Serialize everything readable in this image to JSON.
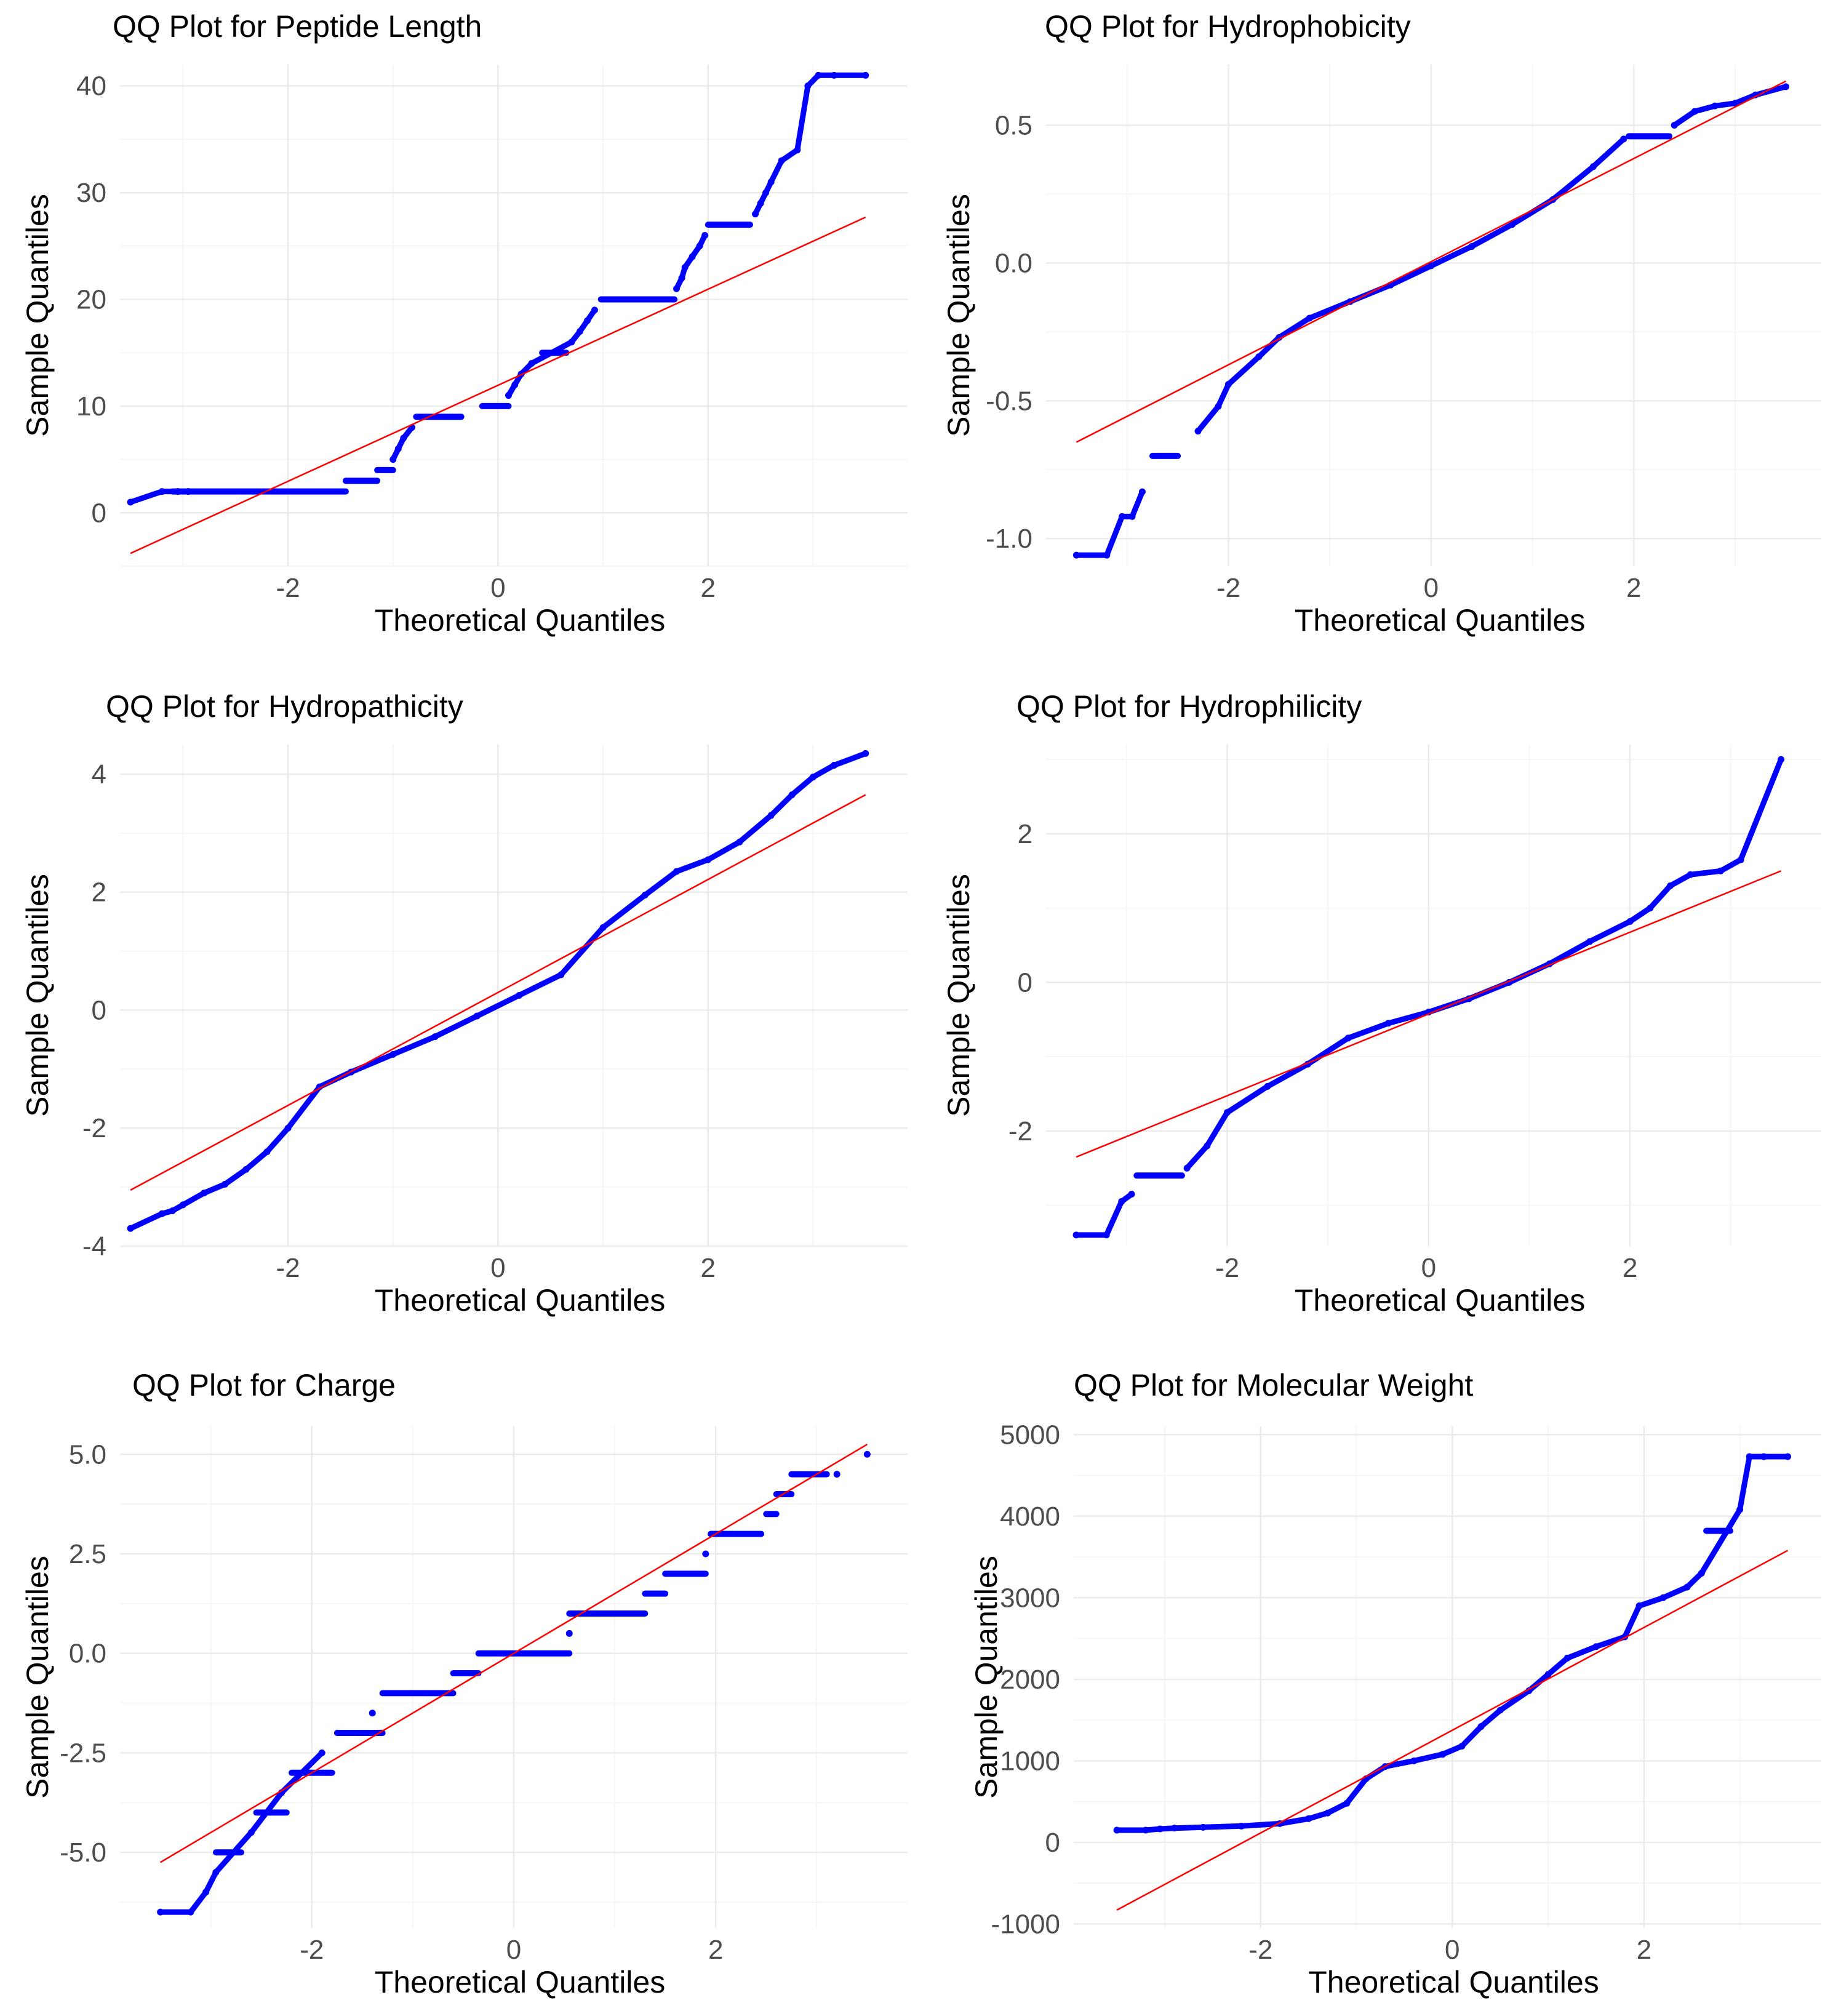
{
  "colors": {
    "points": "#0000FF",
    "line": "#FF0000",
    "grid_major": "#EBEBEB",
    "grid_minor": "#F5F5F5",
    "tick_text": "#4D4D4D",
    "text": "#000000"
  },
  "chart_data": [
    {
      "type": "scatter",
      "title": "QQ Plot for Peptide Length",
      "xlabel": "Theoretical Quantiles",
      "ylabel": "Sample Quantiles",
      "xlim": [
        -3.6,
        3.9
      ],
      "ylim": [
        -5,
        42
      ],
      "xticks": [
        -2,
        0,
        2
      ],
      "xtick_labels": [
        "-2",
        "0",
        "2"
      ],
      "yticks": [
        0,
        10,
        20,
        30,
        40
      ],
      "ytick_labels": [
        "0",
        "10",
        "20",
        "30",
        "40"
      ],
      "reference_line": {
        "x": [
          -3.5,
          3.5
        ],
        "y": [
          -3.8,
          27.7
        ]
      },
      "segments": [
        {
          "x": [
            -3.1,
            -1.45
          ],
          "y": 2
        },
        {
          "x": -1.45,
          "y": 3
        },
        {
          "x": [
            -1.45,
            -1.15
          ],
          "y": 3
        },
        {
          "x": [
            -1.15,
            -1.0
          ],
          "y": 4
        },
        {
          "x": [
            -0.78,
            -0.35
          ],
          "y": 9
        },
        {
          "x": [
            -0.15,
            0.1
          ],
          "y": 10
        },
        {
          "x": [
            0.42,
            0.65
          ],
          "y": 15
        },
        {
          "x": [
            0.98,
            1.68
          ],
          "y": 20
        },
        {
          "x": [
            2.0,
            2.4
          ],
          "y": 27
        }
      ],
      "points": [
        [
          -3.5,
          1
        ],
        [
          -3.2,
          2
        ],
        [
          -3.05,
          2
        ],
        [
          -2.95,
          2
        ],
        [
          -1.0,
          5
        ],
        [
          -0.95,
          6
        ],
        [
          -0.9,
          7
        ],
        [
          -0.82,
          8
        ],
        [
          0.1,
          11
        ],
        [
          0.16,
          12
        ],
        [
          0.22,
          13
        ],
        [
          0.32,
          14
        ],
        [
          0.7,
          16
        ],
        [
          0.78,
          17
        ],
        [
          0.85,
          18
        ],
        [
          0.92,
          19
        ],
        [
          1.7,
          21
        ],
        [
          1.75,
          22
        ],
        [
          1.78,
          23
        ],
        [
          1.85,
          24
        ],
        [
          1.92,
          25
        ],
        [
          1.97,
          26
        ],
        [
          2.45,
          28
        ],
        [
          2.5,
          29
        ],
        [
          2.55,
          30
        ],
        [
          2.6,
          31
        ],
        [
          2.7,
          33
        ],
        [
          2.85,
          34
        ],
        [
          2.95,
          40
        ],
        [
          3.05,
          41
        ],
        [
          3.2,
          41
        ],
        [
          3.5,
          41
        ]
      ]
    },
    {
      "type": "scatter",
      "title": "QQ Plot for Hydrophobicity",
      "xlabel": "Theoretical Quantiles",
      "ylabel": "Sample Quantiles",
      "xlim": [
        -3.8,
        3.85
      ],
      "ylim": [
        -1.1,
        0.72
      ],
      "xticks": [
        -2,
        0,
        2
      ],
      "xtick_labels": [
        "-2",
        "0",
        "2"
      ],
      "yticks": [
        -1.0,
        -0.5,
        0.0,
        0.5
      ],
      "ytick_labels": [
        "-1.0",
        "-0.5",
        "0.0",
        "0.5"
      ],
      "reference_line": {
        "x": [
          -3.5,
          3.5
        ],
        "y": [
          -0.65,
          0.66
        ]
      },
      "segments": [
        {
          "x": [
            -2.75,
            -2.5
          ],
          "y": -0.7
        },
        {
          "x": [
            1.95,
            2.35
          ],
          "y": 0.46
        }
      ],
      "points": [
        [
          -3.5,
          -1.06
        ],
        [
          -3.2,
          -1.06
        ],
        [
          -3.05,
          -0.92
        ],
        [
          -2.95,
          -0.92
        ],
        [
          -2.85,
          -0.83
        ],
        [
          -2.3,
          -0.61
        ],
        [
          -2.1,
          -0.52
        ],
        [
          -2.0,
          -0.44
        ],
        [
          -1.7,
          -0.34
        ],
        [
          -1.5,
          -0.27
        ],
        [
          -1.2,
          -0.2
        ],
        [
          -0.8,
          -0.14
        ],
        [
          -0.4,
          -0.08
        ],
        [
          0.0,
          -0.01
        ],
        [
          0.4,
          0.06
        ],
        [
          0.8,
          0.14
        ],
        [
          1.2,
          0.23
        ],
        [
          1.6,
          0.35
        ],
        [
          1.9,
          0.45
        ],
        [
          2.4,
          0.5
        ],
        [
          2.6,
          0.55
        ],
        [
          2.8,
          0.57
        ],
        [
          3.0,
          0.58
        ],
        [
          3.2,
          0.61
        ],
        [
          3.5,
          0.64
        ]
      ]
    },
    {
      "type": "scatter",
      "title": "QQ Plot for Hydropathicity",
      "xlabel": "Theoretical Quantiles",
      "ylabel": "Sample Quantiles",
      "xlim": [
        -3.6,
        3.9
      ],
      "ylim": [
        -4.0,
        4.5
      ],
      "xticks": [
        -2,
        0,
        2
      ],
      "xtick_labels": [
        "-2",
        "0",
        "2"
      ],
      "yticks": [
        -4,
        -2,
        0,
        2,
        4
      ],
      "ytick_labels": [
        "-4",
        "-2",
        "0",
        "2",
        "4"
      ],
      "reference_line": {
        "x": [
          -3.5,
          3.5
        ],
        "y": [
          -3.05,
          3.65
        ]
      },
      "segments": [],
      "points": [
        [
          -3.5,
          -3.7
        ],
        [
          -3.2,
          -3.45
        ],
        [
          -3.1,
          -3.4
        ],
        [
          -3.0,
          -3.3
        ],
        [
          -2.8,
          -3.1
        ],
        [
          -2.6,
          -2.95
        ],
        [
          -2.4,
          -2.7
        ],
        [
          -2.2,
          -2.4
        ],
        [
          -2.0,
          -2.0
        ],
        [
          -1.7,
          -1.3
        ],
        [
          -1.4,
          -1.05
        ],
        [
          -1.0,
          -0.75
        ],
        [
          -0.6,
          -0.45
        ],
        [
          -0.2,
          -0.1
        ],
        [
          0.2,
          0.25
        ],
        [
          0.6,
          0.6
        ],
        [
          1.0,
          1.4
        ],
        [
          1.4,
          1.95
        ],
        [
          1.7,
          2.35
        ],
        [
          2.0,
          2.55
        ],
        [
          2.3,
          2.85
        ],
        [
          2.6,
          3.3
        ],
        [
          2.8,
          3.65
        ],
        [
          3.0,
          3.95
        ],
        [
          3.2,
          4.15
        ],
        [
          3.5,
          4.35
        ]
      ]
    },
    {
      "type": "scatter",
      "title": "QQ Plot for Hydrophilicity",
      "xlabel": "Theoretical Quantiles",
      "ylabel": "Sample Quantiles",
      "xlim": [
        -3.8,
        3.9
      ],
      "ylim": [
        -3.55,
        3.2
      ],
      "xticks": [
        -2,
        0,
        2
      ],
      "xtick_labels": [
        "-2",
        "0",
        "2"
      ],
      "yticks": [
        -2,
        0,
        2
      ],
      "ytick_labels": [
        "-2",
        "0",
        "2"
      ],
      "reference_line": {
        "x": [
          -3.5,
          3.5
        ],
        "y": [
          -2.35,
          1.5
        ]
      },
      "segments": [
        {
          "x": [
            -2.9,
            -2.45
          ],
          "y": -2.6
        }
      ],
      "points": [
        [
          -3.5,
          -3.4
        ],
        [
          -3.2,
          -3.4
        ],
        [
          -3.05,
          -2.95
        ],
        [
          -2.95,
          -2.85
        ],
        [
          -2.4,
          -2.5
        ],
        [
          -2.2,
          -2.2
        ],
        [
          -2.0,
          -1.75
        ],
        [
          -1.6,
          -1.4
        ],
        [
          -1.2,
          -1.1
        ],
        [
          -0.8,
          -0.75
        ],
        [
          -0.4,
          -0.55
        ],
        [
          0.0,
          -0.4
        ],
        [
          0.4,
          -0.22
        ],
        [
          0.8,
          0.0
        ],
        [
          1.2,
          0.25
        ],
        [
          1.6,
          0.55
        ],
        [
          2.0,
          0.82
        ],
        [
          2.2,
          1.0
        ],
        [
          2.4,
          1.3
        ],
        [
          2.6,
          1.45
        ],
        [
          2.9,
          1.5
        ],
        [
          3.1,
          1.65
        ],
        [
          3.5,
          3.0
        ]
      ]
    },
    {
      "type": "scatter",
      "title": "QQ Plot for Charge",
      "xlabel": "Theoretical Quantiles",
      "ylabel": "Sample Quantiles",
      "xlim": [
        -3.9,
        3.9
      ],
      "ylim": [
        -6.9,
        5.7
      ],
      "xticks": [
        -2,
        0,
        2
      ],
      "xtick_labels": [
        "-2",
        "0",
        "2"
      ],
      "yticks": [
        -5.0,
        -2.5,
        0.0,
        2.5,
        5.0
      ],
      "ytick_labels": [
        "-5.0",
        "-2.5",
        "0.0",
        "2.5",
        "5.0"
      ],
      "reference_line": {
        "x": [
          -3.5,
          3.5
        ],
        "y": [
          -5.25,
          5.25
        ]
      },
      "segments": [
        {
          "x": [
            -2.95,
            -2.7
          ],
          "y": -5
        },
        {
          "x": [
            -2.55,
            -2.25
          ],
          "y": -4
        },
        {
          "x": [
            -2.2,
            -1.8
          ],
          "y": -3
        },
        {
          "x": [
            -1.75,
            -1.3
          ],
          "y": -2
        },
        {
          "x": [
            -1.3,
            -0.6
          ],
          "y": -1
        },
        {
          "x": [
            -0.6,
            -0.35
          ],
          "y": -0.5
        },
        {
          "x": [
            -0.35,
            0.55
          ],
          "y": 0
        },
        {
          "x": [
            0.55,
            1.3
          ],
          "y": 1
        },
        {
          "x": [
            1.3,
            1.5
          ],
          "y": 1.5
        },
        {
          "x": [
            1.5,
            1.9
          ],
          "y": 2
        },
        {
          "x": [
            1.95,
            2.45
          ],
          "y": 3
        },
        {
          "x": [
            2.5,
            2.6
          ],
          "y": 3.5
        },
        {
          "x": [
            2.6,
            2.75
          ],
          "y": 4
        },
        {
          "x": [
            2.75,
            3.1
          ],
          "y": 4.5
        }
      ],
      "points": [
        [
          -3.5,
          -6.5
        ],
        [
          -3.2,
          -6.5
        ],
        [
          -3.05,
          -6.0
        ],
        [
          -2.95,
          -5.5
        ],
        [
          -2.6,
          -4.5
        ],
        [
          -2.3,
          -3.5
        ],
        [
          -1.9,
          -2.5
        ],
        [
          -1.4,
          -1.5
        ],
        [
          0.55,
          0.5
        ],
        [
          1.9,
          2.5
        ],
        [
          3.2,
          4.5
        ],
        [
          3.5,
          5.0
        ]
      ]
    },
    {
      "type": "scatter",
      "title": "QQ Plot for Molecular Weight",
      "xlabel": "Theoretical Quantiles",
      "ylabel": "Sample Quantiles",
      "xlim": [
        -3.95,
        3.85
      ],
      "ylim": [
        -1050,
        5100
      ],
      "xticks": [
        -2,
        0,
        2
      ],
      "xtick_labels": [
        "-2",
        "0",
        "2"
      ],
      "yticks": [
        -1000,
        0,
        1000,
        2000,
        3000,
        4000,
        5000
      ],
      "ytick_labels": [
        "-1000",
        "0",
        "1000",
        "2000",
        "3000",
        "4000",
        "5000"
      ],
      "reference_line": {
        "x": [
          -3.5,
          3.5
        ],
        "y": [
          -830,
          3580
        ]
      },
      "segments": [
        {
          "x": [
            2.65,
            2.9
          ],
          "y": 3820
        }
      ],
      "points": [
        [
          -3.5,
          150
        ],
        [
          -3.2,
          150
        ],
        [
          -3.05,
          165
        ],
        [
          -2.9,
          175
        ],
        [
          -2.6,
          185
        ],
        [
          -2.2,
          200
        ],
        [
          -1.8,
          230
        ],
        [
          -1.5,
          290
        ],
        [
          -1.3,
          360
        ],
        [
          -1.1,
          480
        ],
        [
          -0.9,
          780
        ],
        [
          -0.7,
          930
        ],
        [
          -0.4,
          1000
        ],
        [
          -0.1,
          1080
        ],
        [
          0.1,
          1180
        ],
        [
          0.3,
          1420
        ],
        [
          0.5,
          1620
        ],
        [
          0.8,
          1860
        ],
        [
          1.0,
          2060
        ],
        [
          1.2,
          2260
        ],
        [
          1.5,
          2400
        ],
        [
          1.8,
          2520
        ],
        [
          1.95,
          2900
        ],
        [
          2.2,
          3000
        ],
        [
          2.45,
          3130
        ],
        [
          2.6,
          3300
        ],
        [
          3.0,
          4080
        ],
        [
          3.1,
          4730
        ],
        [
          3.25,
          4730
        ],
        [
          3.5,
          4730
        ]
      ]
    }
  ]
}
